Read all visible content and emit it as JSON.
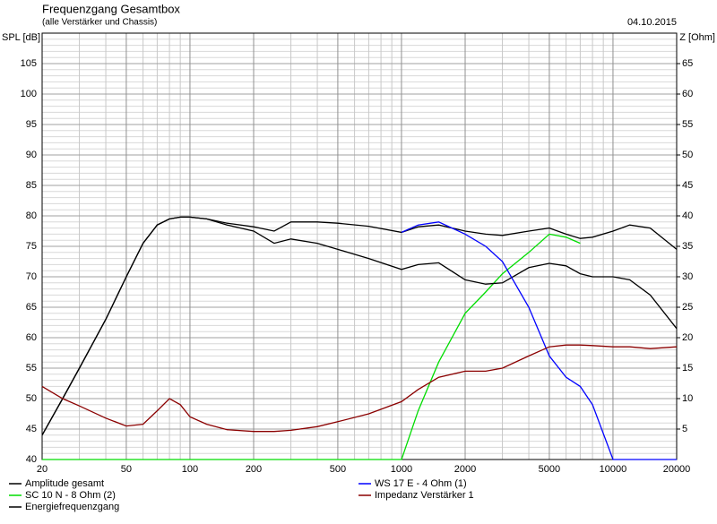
{
  "chart_data": {
    "type": "line",
    "title": "Frequenzgang Gesamtbox",
    "subtitle": "(alle Verstärker und Chassis)",
    "date": "04.10.2015",
    "ylabel": "SPL [dB]",
    "y2label": "Z [Ohm]",
    "log_x": true,
    "grid": true,
    "x": [
      20,
      25,
      30,
      40,
      50,
      60,
      70,
      80,
      90,
      100,
      120,
      150,
      200,
      250,
      300,
      400,
      500,
      700,
      1000,
      1200,
      1500,
      2000,
      2500,
      3000,
      4000,
      5000,
      6000,
      7000,
      8000,
      10000,
      12000,
      15000,
      20000
    ],
    "xlim": [
      20,
      20000
    ],
    "xticks": [
      20,
      50,
      100,
      200,
      500,
      1000,
      2000,
      5000,
      10000,
      20000
    ],
    "xgrid_minor": [
      30,
      40,
      60,
      70,
      80,
      90,
      300,
      400,
      600,
      700,
      800,
      900,
      3000,
      4000,
      6000,
      7000,
      8000,
      9000
    ],
    "ylim": [
      40,
      110
    ],
    "yticks": [
      40,
      45,
      50,
      55,
      60,
      65,
      70,
      75,
      80,
      85,
      90,
      95,
      100,
      105
    ],
    "yminor_step": 1,
    "y2lim": [
      0,
      70
    ],
    "y2ticks": [
      5,
      10,
      15,
      20,
      25,
      30,
      35,
      40,
      45,
      50,
      55,
      60,
      65
    ],
    "series": [
      {
        "name": "Amplitude gesamt",
        "color": "#000000",
        "values": [
          44,
          50,
          55,
          63,
          70,
          75.5,
          78.5,
          79.5,
          79.8,
          79.8,
          79.5,
          78.8,
          78.2,
          77.5,
          79,
          79,
          78.8,
          78.3,
          77.3,
          78.2,
          78.5,
          77.5,
          77,
          76.8,
          77.5,
          78,
          77,
          76.3,
          76.5,
          77.5,
          78.5,
          78,
          74.5
        ]
      },
      {
        "name": "SC 10 N - 8 Ohm (2)",
        "color": "#00dd00",
        "values": [
          40,
          40,
          40,
          40,
          40,
          40,
          40,
          40,
          40,
          40,
          40,
          40,
          40,
          40,
          40,
          40,
          40,
          40,
          40,
          48,
          56,
          64,
          67.5,
          70.5,
          74,
          77,
          76.5,
          75.5,
          null,
          null,
          null,
          null,
          null
        ]
      },
      {
        "name": "Energiefrequenzgang",
        "color": "#000000",
        "values": [
          44,
          50,
          55,
          63,
          70,
          75.5,
          78.5,
          79.5,
          79.8,
          79.8,
          79.5,
          78.5,
          77.5,
          75.5,
          76.2,
          75.5,
          74.5,
          73,
          71.2,
          72,
          72.3,
          69.5,
          68.8,
          69,
          71.5,
          72.2,
          71.8,
          70.5,
          70,
          70,
          69.5,
          67,
          61.5
        ]
      },
      {
        "name": "WS 17 E - 4 Ohm  (1)",
        "color": "#0000ff",
        "values": [
          null,
          null,
          null,
          null,
          null,
          null,
          null,
          null,
          null,
          null,
          null,
          null,
          null,
          null,
          null,
          null,
          null,
          null,
          77.3,
          78.5,
          79,
          77,
          75,
          72.5,
          65,
          57,
          53.5,
          52,
          49,
          40,
          40,
          40,
          40
        ]
      },
      {
        "name": "Impedanz Verstärker 1",
        "color": "#8b0000",
        "axis": "y2",
        "values": [
          12,
          10,
          8.8,
          6.8,
          5.5,
          5.8,
          8,
          10,
          9,
          7,
          5.8,
          4.9,
          4.6,
          4.6,
          4.8,
          5.4,
          6.2,
          7.5,
          9.5,
          11.5,
          13.5,
          14.5,
          14.5,
          15,
          17,
          18.5,
          18.8,
          18.8,
          18.7,
          18.5,
          18.5,
          18.2,
          18.5
        ]
      }
    ]
  }
}
